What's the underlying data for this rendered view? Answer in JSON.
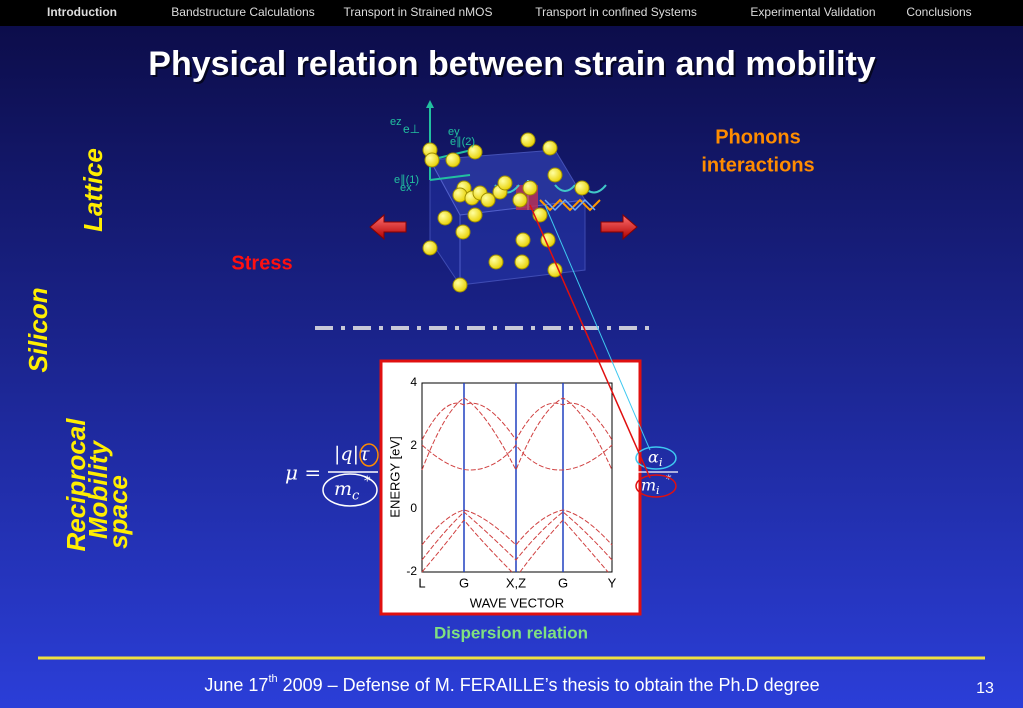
{
  "nav": [
    "Introduction",
    "Bandstructure Calculations",
    "Transport in Strained nMOS",
    "Transport in confined Systems",
    "Experimental Validation",
    "Conclusions"
  ],
  "title": "Physical relation between strain and mobility",
  "side_labels": {
    "lattice": "Lattice",
    "silicon": "Silicon",
    "reciprocal": "Reciprocal",
    "mobility": "Mobility",
    "space": "space"
  },
  "phonons": [
    "Phonons",
    "interactions"
  ],
  "stress": "Stress",
  "axes_labels": [
    "ez",
    "e⊥",
    "ey",
    "e∥(2)",
    "e∥(1)",
    "ex"
  ],
  "formula": {
    "lhs": "μ =",
    "numerator": "|q|τ",
    "denominator_base": "m",
    "denominator_sub": "c",
    "star": "*",
    "alpha": "α",
    "alpha_sub": "i",
    "m_base": "m",
    "m_sub": "i"
  },
  "plot": {
    "y_label": "ENERGY [eV]",
    "x_label": "WAVE VECTOR",
    "yticks": [
      4,
      2,
      0,
      -2
    ],
    "xticks": [
      "L",
      "G",
      "X,Z",
      "G",
      "Y"
    ]
  },
  "caption": "Dispersion relation",
  "footer": {
    "pre": "June 17",
    "sup": "th",
    "post": " 2009 – Defense of M. FERAILLE’s thesis to obtain the Ph.D degree"
  },
  "page_number": "13"
}
